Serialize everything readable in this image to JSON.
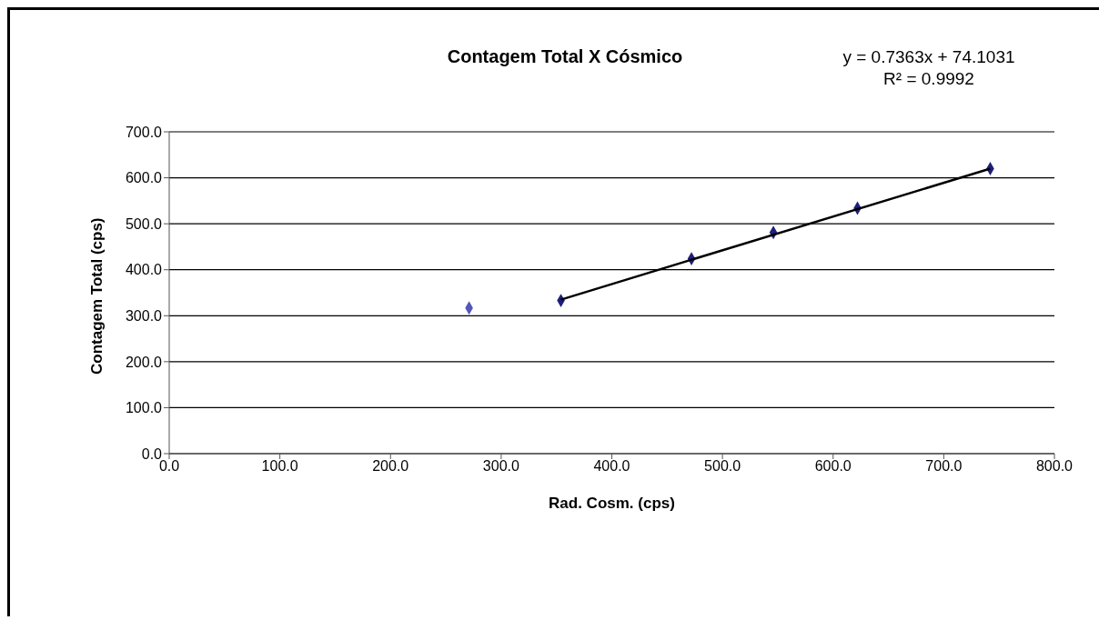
{
  "chart_data": {
    "type": "scatter",
    "title": "Contagem Total X Cósmico",
    "xlabel": "Rad. Cosm. (cps)",
    "ylabel": "Contagem Total (cps)",
    "annotations": [
      "y = 0.7363x + 74.1031",
      "R² = 0.9992"
    ],
    "series": [
      {
        "color": "#5555bb",
        "x": [
          271
        ],
        "values": [
          317
        ]
      },
      {
        "color": "#1f1f7a",
        "x": [
          354,
          472,
          546,
          622,
          742
        ],
        "values": [
          333,
          424,
          481,
          534,
          620
        ]
      },
      {
        "type": "line",
        "color": "#000000",
        "marker": "none",
        "x": [
          354,
          742
        ],
        "values": [
          335,
          620
        ]
      }
    ],
    "xlim": [
      0,
      800
    ],
    "xticks": [
      {
        "value": 0,
        "label": "0.0"
      },
      {
        "value": 100,
        "label": "100.0"
      },
      {
        "value": 200,
        "label": "200.0"
      },
      {
        "value": 300,
        "label": "300.0"
      },
      {
        "value": 400,
        "label": "400.0"
      },
      {
        "value": 500,
        "label": "500.0"
      },
      {
        "value": 600,
        "label": "600.0"
      },
      {
        "value": 700,
        "label": "700.0"
      },
      {
        "value": 800,
        "label": "800.0"
      }
    ],
    "ylim": [
      0,
      700
    ],
    "yticks": [
      {
        "value": 0,
        "label": "0.0"
      },
      {
        "value": 100,
        "label": "100.0"
      },
      {
        "value": 200,
        "label": "200.0"
      },
      {
        "value": 300,
        "label": "300.0"
      },
      {
        "value": 400,
        "label": "400.0"
      },
      {
        "value": 500,
        "label": "500.0"
      },
      {
        "value": 600,
        "label": "600.0"
      },
      {
        "value": 700,
        "label": "700.0"
      }
    ],
    "grid": "y",
    "marker": "diamond",
    "legend": false
  }
}
